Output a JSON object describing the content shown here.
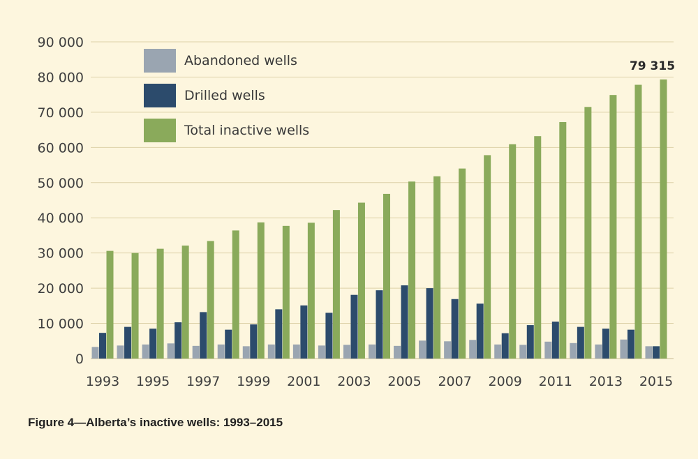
{
  "chart_data": {
    "type": "bar",
    "title": "",
    "xlabel": "",
    "ylabel": "",
    "ylim": [
      0,
      90000
    ],
    "yticks": [
      0,
      10000,
      20000,
      30000,
      40000,
      50000,
      60000,
      70000,
      80000,
      90000
    ],
    "ytick_labels": [
      "0",
      "10 000",
      "20 000",
      "30 000",
      "40 000",
      "50 000",
      "60 000",
      "70 000",
      "80 000",
      "90 000"
    ],
    "categories": [
      "1993",
      "1994",
      "1995",
      "1996",
      "1997",
      "1998",
      "1999",
      "2000",
      "2001",
      "2002",
      "2003",
      "2004",
      "2005",
      "2006",
      "2007",
      "2008",
      "2009",
      "2010",
      "2011",
      "2012",
      "2013",
      "2014",
      "2015"
    ],
    "xtick_labels": [
      "1993",
      "",
      "1995",
      "",
      "1997",
      "",
      "1999",
      "",
      "2001",
      "",
      "2003",
      "",
      "2005",
      "",
      "2007",
      "",
      "2009",
      "",
      "2011",
      "",
      "2013",
      "",
      "2015"
    ],
    "series": [
      {
        "name": "Abandoned wells",
        "color": "#9aa5b1",
        "values": [
          3300,
          3700,
          4000,
          4300,
          3600,
          4000,
          3500,
          4000,
          4000,
          3700,
          3900,
          4000,
          3600,
          5100,
          4900,
          5300,
          4000,
          3900,
          4800,
          4400,
          4000,
          5400,
          3500
        ]
      },
      {
        "name": "Drilled wells",
        "color": "#2c4b6c",
        "values": [
          7300,
          9000,
          8500,
          10300,
          13200,
          8200,
          9700,
          14000,
          15100,
          13000,
          18100,
          19400,
          20800,
          20000,
          16900,
          15600,
          7200,
          9500,
          10500,
          9000,
          8500,
          8200,
          3500
        ]
      },
      {
        "name": "Total inactive wells",
        "color": "#8aaa5b",
        "values": [
          30600,
          30000,
          31200,
          32100,
          33400,
          36400,
          38700,
          37700,
          38600,
          42200,
          44300,
          46800,
          50300,
          51800,
          54000,
          57800,
          60900,
          63200,
          67200,
          71500,
          74900,
          77800,
          79315
        ]
      }
    ],
    "legend_position": "top-left",
    "annotations": [
      {
        "category": "2015",
        "series": "Total inactive wells",
        "text": "79 315"
      }
    ],
    "grid": true
  },
  "caption": "Figure 4—Alberta’s inactive wells: 1993–2015",
  "colors": {
    "background": "#fdf6de",
    "grid": "#ddd1a8",
    "axis": "#c8bb92"
  }
}
